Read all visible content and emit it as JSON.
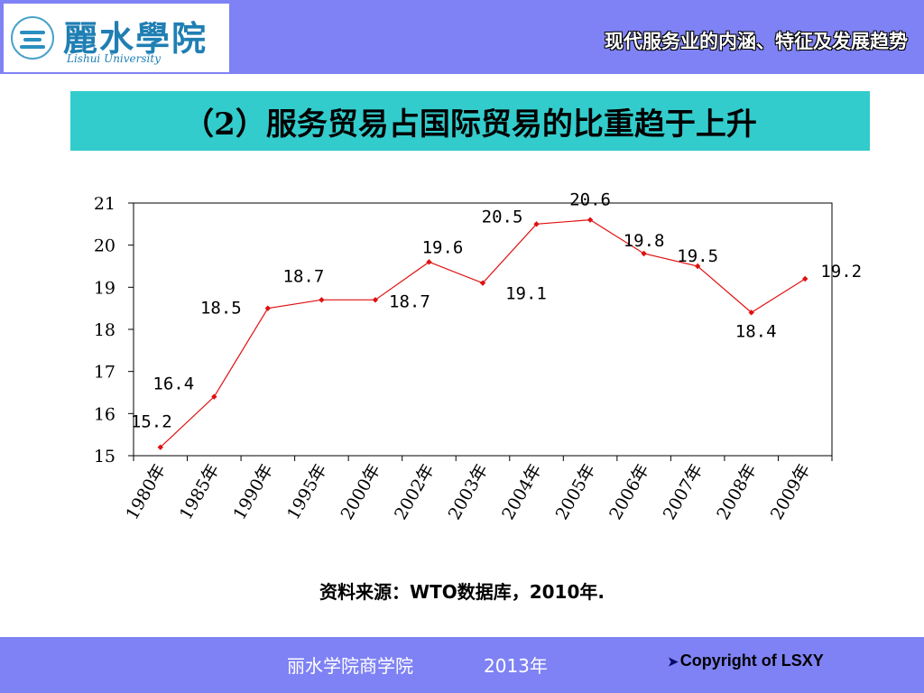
{
  "header": {
    "logo_cn": "麗水學院",
    "logo_en": "Lishui University",
    "title": "现代服务业的内涵、特征及发展趋势"
  },
  "slide": {
    "title": "（2）服务贸易占国际贸易的比重趋于上升",
    "source": "资料来源：WTO数据库，2010年."
  },
  "footer": {
    "org": "丽水学院商学院",
    "year": "2013年",
    "copyright": "Copyright of LSXY"
  },
  "colors": {
    "bar": "#7f82f4",
    "title_box": "#33cccc",
    "line": "#e01010"
  },
  "chart_data": {
    "type": "line",
    "categories": [
      "1980年",
      "1985年",
      "1990年",
      "1995年",
      "2000年",
      "2002年",
      "2003年",
      "2004年",
      "2005年",
      "2006年",
      "2007年",
      "2008年",
      "2009年"
    ],
    "series": [
      {
        "values": [
          15.2,
          16.4,
          18.5,
          18.7,
          18.7,
          19.6,
          19.1,
          20.5,
          20.6,
          19.8,
          19.5,
          18.4,
          19.2
        ]
      }
    ],
    "ylim": [
      15,
      21
    ],
    "yticks": [
      15,
      16,
      17,
      18,
      19,
      20,
      21
    ],
    "data_labels": [
      "15.2",
      "16.4",
      "18.5",
      "18.7",
      "18.7",
      "19.6",
      "19.1",
      "20.5",
      "20.6",
      "19.8",
      "19.5",
      "18.4",
      "19.2"
    ],
    "grid": false,
    "legend": "none"
  }
}
